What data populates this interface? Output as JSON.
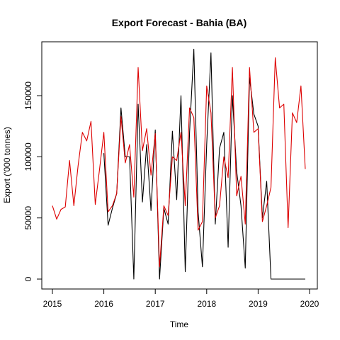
{
  "chart_data": {
    "type": "line",
    "title": "Export Forecast - Bahia (BA)",
    "xlabel": "Time",
    "ylabel": "Export ('000 tonnes)",
    "xlim": [
      2015,
      2020
    ],
    "ylim": [
      0,
      190000
    ],
    "x_ticks": [
      2015,
      2016,
      2017,
      2018,
      2019,
      2020
    ],
    "x_tick_labels": [
      "2015",
      "2016",
      "2017",
      "2018",
      "2019",
      "2020"
    ],
    "y_ticks": [
      0,
      50000,
      100000,
      150000
    ],
    "y_tick_labels": [
      "0",
      "50000",
      "100000",
      "150000"
    ],
    "grid": false,
    "series": [
      {
        "color": "#000000",
        "x": [
          2016.0,
          2016.083,
          2016.167,
          2016.25,
          2016.333,
          2016.417,
          2016.5,
          2016.583,
          2016.667,
          2016.75,
          2016.833,
          2016.917,
          2017.0,
          2017.083,
          2017.167,
          2017.25,
          2017.333,
          2017.417,
          2017.5,
          2017.583,
          2017.667,
          2017.75,
          2017.833,
          2017.917,
          2018.0,
          2018.083,
          2018.167,
          2018.25,
          2018.333,
          2018.417,
          2018.5,
          2018.583,
          2018.667,
          2018.75,
          2018.833,
          2018.917,
          2019.0,
          2019.083,
          2019.167,
          2019.25,
          2019.333,
          2019.417,
          2019.5,
          2019.583,
          2019.667,
          2019.75,
          2019.833,
          2019.917
        ],
        "y": [
          103000,
          44000,
          58000,
          70000,
          140000,
          100000,
          100000,
          0,
          143000,
          63000,
          110000,
          56000,
          122000,
          0,
          58000,
          45000,
          121000,
          65000,
          150000,
          6000,
          120000,
          188000,
          55000,
          10000,
          110000,
          185000,
          45000,
          107000,
          120000,
          26000,
          150000,
          88000,
          60000,
          9000,
          165000,
          135000,
          125000,
          50000,
          80000,
          0,
          0,
          0,
          0,
          0,
          0,
          0,
          0,
          0
        ]
      },
      {
        "color": "#dd0000",
        "x": [
          2015.0,
          2015.083,
          2015.167,
          2015.25,
          2015.333,
          2015.417,
          2015.5,
          2015.583,
          2015.667,
          2015.75,
          2015.833,
          2015.917,
          2016.0,
          2016.083,
          2016.167,
          2016.25,
          2016.333,
          2016.417,
          2016.5,
          2016.583,
          2016.667,
          2016.75,
          2016.833,
          2016.917,
          2017.0,
          2017.083,
          2017.167,
          2017.25,
          2017.333,
          2017.417,
          2017.5,
          2017.583,
          2017.667,
          2017.75,
          2017.833,
          2017.917,
          2018.0,
          2018.083,
          2018.167,
          2018.25,
          2018.333,
          2018.417,
          2018.5,
          2018.583,
          2018.667,
          2018.75,
          2018.833,
          2018.917,
          2019.0,
          2019.083,
          2019.167,
          2019.25,
          2019.333,
          2019.417,
          2019.5,
          2019.583,
          2019.667,
          2019.75,
          2019.833,
          2019.917
        ],
        "y": [
          60000,
          49000,
          57000,
          59000,
          97000,
          60000,
          93000,
          120000,
          113000,
          129000,
          61000,
          90000,
          120000,
          55000,
          60000,
          70000,
          133000,
          95000,
          110000,
          67000,
          173000,
          105000,
          123000,
          85000,
          119000,
          10000,
          60000,
          52000,
          100000,
          97000,
          120000,
          60000,
          140000,
          132000,
          40000,
          47000,
          158000,
          136000,
          50000,
          60000,
          100000,
          83000,
          173000,
          68000,
          84000,
          45000,
          173000,
          120000,
          123000,
          47000,
          60000,
          75000,
          181000,
          140000,
          143000,
          42000,
          136000,
          128000,
          158000,
          90000
        ]
      }
    ]
  }
}
